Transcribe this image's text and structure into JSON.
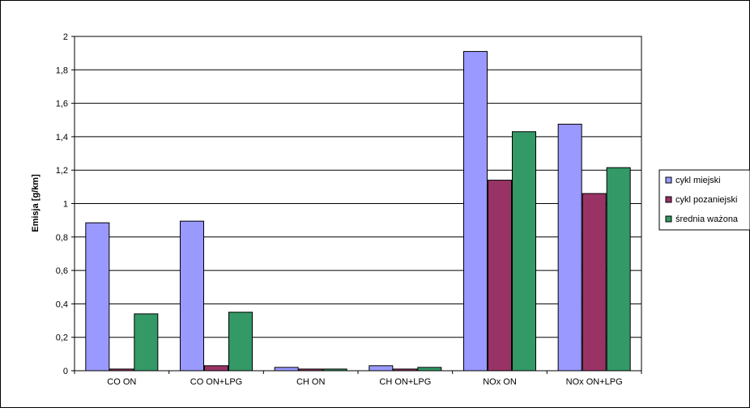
{
  "chart_data": {
    "type": "bar",
    "title": "",
    "xlabel": "",
    "ylabel": "Emisja [g/km]",
    "ylim": [
      0,
      2
    ],
    "yticks": [
      "0",
      "0,2",
      "0,4",
      "0,6",
      "0,8",
      "1",
      "1,2",
      "1,4",
      "1,6",
      "1,8",
      "2"
    ],
    "categories": [
      "CO ON",
      "CO ON+LPG",
      "CH ON",
      "CH ON+LPG",
      "NOx ON",
      "NOx ON+LPG"
    ],
    "series": [
      {
        "name": "cykl miejski",
        "color": "#9999ff",
        "values": [
          0.885,
          0.895,
          0.02,
          0.03,
          1.91,
          1.475
        ]
      },
      {
        "name": "cykl pozaniejski",
        "color": "#993366",
        "values": [
          0.01,
          0.03,
          0.01,
          0.01,
          1.14,
          1.06
        ]
      },
      {
        "name": "średnia ważona",
        "color": "#339966",
        "values": [
          0.34,
          0.35,
          0.01,
          0.02,
          1.43,
          1.215
        ]
      }
    ],
    "grid": true,
    "legend_position": "right"
  }
}
